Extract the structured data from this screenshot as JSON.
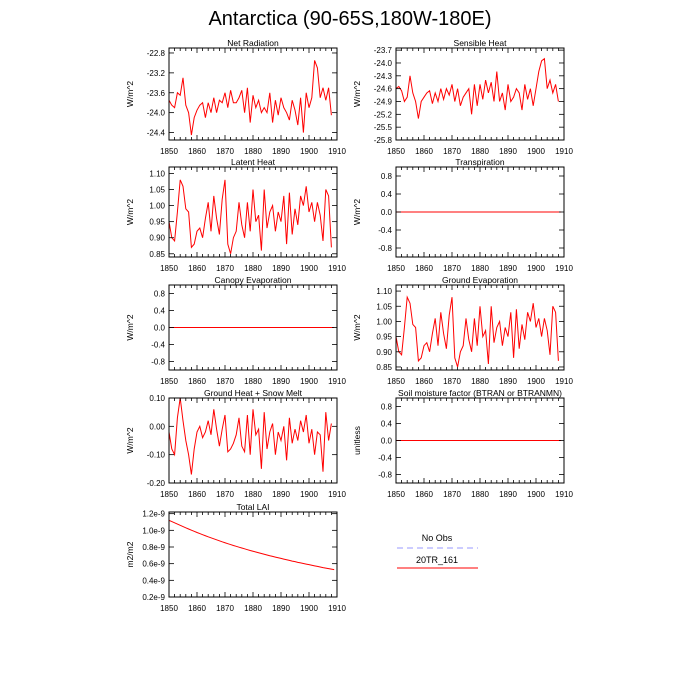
{
  "title": "Antarctica (90-65S,180W-180E)",
  "legend": {
    "entries": [
      {
        "label": "No Obs",
        "color": "#9999ff",
        "dash": true
      },
      {
        "label": "20TR_161",
        "color": "#ff0000",
        "dash": false
      }
    ]
  },
  "chart_data": [
    {
      "type": "line",
      "title": "Net Radiation",
      "ylabel": "W/m^2",
      "xlim": [
        1850,
        1910
      ],
      "ylim": [
        -24.55,
        -22.7
      ],
      "xticks": [
        1850,
        1860,
        1870,
        1880,
        1890,
        1900,
        1910
      ],
      "yticks": [
        -22.8,
        -23.2,
        -23.6,
        -24.0,
        -24.4
      ],
      "ytick_labels": [
        "-22.8",
        "-23.2",
        "-23.6",
        "-24.0",
        "-24.4"
      ],
      "x_start": 1850,
      "values": [
        -23.75,
        -23.85,
        -23.9,
        -23.6,
        -23.65,
        -23.3,
        -23.85,
        -24.0,
        -24.45,
        -24.1,
        -23.95,
        -23.85,
        -23.8,
        -24.1,
        -23.8,
        -24.0,
        -23.7,
        -24.0,
        -23.75,
        -23.8,
        -23.6,
        -23.9,
        -23.55,
        -23.8,
        -23.8,
        -23.7,
        -23.55,
        -24.0,
        -23.5,
        -24.2,
        -23.65,
        -23.9,
        -23.75,
        -24.0,
        -23.9,
        -24.0,
        -23.6,
        -24.2,
        -23.75,
        -24.05,
        -23.7,
        -23.9,
        -24.0,
        -24.15,
        -23.75,
        -23.95,
        -24.25,
        -23.7,
        -24.4,
        -23.6,
        -23.9,
        -23.7,
        -22.95,
        -23.1,
        -23.7,
        -23.5,
        -23.75,
        -23.5,
        -24.05
      ]
    },
    {
      "type": "line",
      "title": "Sensible Heat",
      "ylabel": "W/m^2",
      "xlim": [
        1850,
        1910
      ],
      "ylim": [
        -25.8,
        -23.65
      ],
      "xticks": [
        1850,
        1860,
        1870,
        1880,
        1890,
        1900,
        1910
      ],
      "yticks": [
        -23.7,
        -24.0,
        -24.3,
        -24.6,
        -24.9,
        -25.2,
        -25.5,
        -25.8
      ],
      "ytick_labels": [
        "-23.7",
        "-24.0",
        "-24.3",
        "-24.6",
        "-24.9",
        "-25.2",
        "-25.5",
        "-25.8"
      ],
      "x_start": 1850,
      "values": [
        -24.6,
        -24.55,
        -24.65,
        -24.9,
        -24.8,
        -24.3,
        -24.7,
        -24.9,
        -25.3,
        -24.9,
        -24.8,
        -24.7,
        -24.65,
        -24.95,
        -24.7,
        -24.9,
        -24.6,
        -24.85,
        -24.6,
        -24.75,
        -24.5,
        -24.9,
        -24.6,
        -25.0,
        -24.8,
        -24.7,
        -24.6,
        -25.2,
        -24.5,
        -25.0,
        -24.5,
        -24.85,
        -24.4,
        -24.7,
        -24.45,
        -24.9,
        -24.2,
        -24.9,
        -24.7,
        -25.1,
        -24.5,
        -24.9,
        -24.8,
        -24.6,
        -24.7,
        -25.1,
        -24.5,
        -24.85,
        -24.6,
        -25.0,
        -24.6,
        -24.2,
        -23.95,
        -23.9,
        -24.6,
        -24.4,
        -24.7,
        -24.5,
        -24.9
      ]
    },
    {
      "type": "line",
      "title": "Latent Heat",
      "ylabel": "W/m^2",
      "xlim": [
        1850,
        1910
      ],
      "ylim": [
        0.84,
        1.12
      ],
      "xticks": [
        1850,
        1860,
        1870,
        1880,
        1890,
        1900,
        1910
      ],
      "yticks": [
        0.85,
        0.9,
        0.95,
        1.0,
        1.05,
        1.1
      ],
      "ytick_labels": [
        "0.85",
        "0.90",
        "0.95",
        "1.00",
        "1.05",
        "1.10"
      ],
      "x_start": 1850,
      "values": [
        0.95,
        0.9,
        0.89,
        0.98,
        1.08,
        1.06,
        0.99,
        0.98,
        0.87,
        0.88,
        0.92,
        0.93,
        0.9,
        0.96,
        1.01,
        0.92,
        1.03,
        0.96,
        0.91,
        1.02,
        1.08,
        0.88,
        0.85,
        0.9,
        0.92,
        1.01,
        0.94,
        0.9,
        1.01,
        0.92,
        1.05,
        0.95,
        0.97,
        0.86,
        1.05,
        0.93,
        0.98,
        1.0,
        0.92,
        0.98,
        0.95,
        1.03,
        0.88,
        1.04,
        0.91,
        0.99,
        0.94,
        1.03,
        1.0,
        1.06,
        0.98,
        1.01,
        0.95,
        1.01,
        0.97,
        0.89,
        1.05,
        1.03,
        0.87
      ]
    },
    {
      "type": "line",
      "title": "Transpiration",
      "ylabel": "W/m^2",
      "xlim": [
        1850,
        1910
      ],
      "ylim": [
        -1.0,
        1.0
      ],
      "xticks": [
        1850,
        1860,
        1870,
        1880,
        1890,
        1900,
        1910
      ],
      "yticks": [
        0.8,
        0.4,
        0.0,
        -0.4,
        -0.8
      ],
      "ytick_labels": [
        "0.8",
        "0.4",
        "0.0",
        "-0.4",
        "-0.8"
      ],
      "x": [
        1850,
        1909
      ],
      "values": [
        0,
        0
      ]
    },
    {
      "type": "line",
      "title": "Canopy Evaporation",
      "ylabel": "W/m^2",
      "xlim": [
        1850,
        1910
      ],
      "ylim": [
        -1.0,
        1.0
      ],
      "xticks": [
        1850,
        1860,
        1870,
        1880,
        1890,
        1900,
        1910
      ],
      "yticks": [
        0.8,
        0.4,
        0.0,
        -0.4,
        -0.8
      ],
      "ytick_labels": [
        "0.8",
        "0.4",
        "0.0",
        "-0.4",
        "-0.8"
      ],
      "x": [
        1850,
        1909
      ],
      "values": [
        0,
        0
      ]
    },
    {
      "type": "line",
      "title": "Ground Evaporation",
      "ylabel": "W/m^2",
      "xlim": [
        1850,
        1910
      ],
      "ylim": [
        0.84,
        1.12
      ],
      "xticks": [
        1850,
        1860,
        1870,
        1880,
        1890,
        1900,
        1910
      ],
      "yticks": [
        0.85,
        0.9,
        0.95,
        1.0,
        1.05,
        1.1
      ],
      "ytick_labels": [
        "0.85",
        "0.90",
        "0.95",
        "1.00",
        "1.05",
        "1.10"
      ],
      "x_start": 1850,
      "values": [
        0.95,
        0.9,
        0.89,
        0.98,
        1.08,
        1.06,
        0.99,
        0.98,
        0.87,
        0.88,
        0.92,
        0.93,
        0.9,
        0.96,
        1.01,
        0.92,
        1.03,
        0.96,
        0.91,
        1.02,
        1.08,
        0.88,
        0.85,
        0.9,
        0.92,
        1.01,
        0.94,
        0.9,
        1.01,
        0.92,
        1.05,
        0.95,
        0.97,
        0.86,
        1.05,
        0.93,
        0.98,
        1.0,
        0.92,
        0.98,
        0.95,
        1.03,
        0.88,
        1.04,
        0.91,
        0.99,
        0.94,
        1.03,
        1.0,
        1.06,
        0.98,
        1.01,
        0.95,
        1.01,
        0.97,
        0.89,
        1.05,
        1.03,
        0.87
      ]
    },
    {
      "type": "line",
      "title": "Ground Heat + Snow Melt",
      "ylabel": "W/m^2",
      "xlim": [
        1850,
        1910
      ],
      "ylim": [
        -0.2,
        0.1
      ],
      "xticks": [
        1850,
        1860,
        1870,
        1880,
        1890,
        1900,
        1910
      ],
      "yticks": [
        0.1,
        0.0,
        -0.1,
        -0.2
      ],
      "ytick_labels": [
        "0.10",
        "0.00",
        "-0.10",
        "-0.20"
      ],
      "x_start": 1850,
      "values": [
        -0.02,
        -0.08,
        -0.1,
        0.03,
        0.1,
        0.02,
        -0.05,
        -0.1,
        -0.17,
        -0.08,
        -0.02,
        0.0,
        -0.04,
        -0.02,
        0.02,
        -0.03,
        0.06,
        -0.01,
        -0.07,
        -0.01,
        0.04,
        -0.09,
        -0.08,
        -0.06,
        -0.03,
        0.03,
        -0.07,
        -0.09,
        0.04,
        -0.1,
        0.06,
        -0.03,
        -0.01,
        -0.15,
        0.05,
        -0.08,
        -0.02,
        0.01,
        -0.1,
        -0.02,
        -0.05,
        0.0,
        -0.12,
        0.03,
        -0.06,
        -0.01,
        -0.05,
        0.02,
        -0.02,
        0.04,
        -0.06,
        -0.01,
        -0.1,
        -0.02,
        -0.03,
        -0.16,
        0.05,
        -0.05,
        0.01
      ]
    },
    {
      "type": "line",
      "title": "Soil moisture factor (BTRAN or BTRANMN)",
      "ylabel": "unitless",
      "xlim": [
        1850,
        1910
      ],
      "ylim": [
        -1.0,
        1.0
      ],
      "xticks": [
        1850,
        1860,
        1870,
        1880,
        1890,
        1900,
        1910
      ],
      "yticks": [
        0.8,
        0.4,
        0.0,
        -0.4,
        -0.8
      ],
      "ytick_labels": [
        "0.8",
        "0.4",
        "0.0",
        "-0.4",
        "-0.8"
      ],
      "x": [
        1850,
        1909
      ],
      "values": [
        0,
        0
      ]
    },
    {
      "type": "line",
      "title": "Total LAI",
      "ylabel": "m2/m2",
      "xlim": [
        1850,
        1910
      ],
      "ylim": [
        2e-10,
        1.22e-09
      ],
      "xticks": [
        1850,
        1860,
        1870,
        1880,
        1890,
        1900,
        1910
      ],
      "yticks": [
        1.2e-09,
        1e-09,
        8e-10,
        6e-10,
        4e-10,
        2e-10
      ],
      "ytick_labels": [
        "1.2e-9",
        "1.0e-9",
        "0.8e-9",
        "0.6e-9",
        "0.4e-9",
        "0.2e-9"
      ],
      "x_start": 1850,
      "values": [
        1.12e-09,
        1.105e-09,
        1.09e-09,
        1.075e-09,
        1.06e-09,
        1.045e-09,
        1.03e-09,
        1.016e-09,
        1.002e-09,
        9.88e-10,
        9.74e-10,
        9.61e-10,
        9.48e-10,
        9.35e-10,
        9.22e-10,
        9.1e-10,
        8.98e-10,
        8.86e-10,
        8.74e-10,
        8.62e-10,
        8.51e-10,
        8.4e-10,
        8.29e-10,
        8.18e-10,
        8.08e-10,
        7.98e-10,
        7.88e-10,
        7.78e-10,
        7.68e-10,
        7.58e-10,
        7.49e-10,
        7.4e-10,
        7.31e-10,
        7.22e-10,
        7.13e-10,
        7.04e-10,
        6.95e-10,
        6.87e-10,
        6.79e-10,
        6.71e-10,
        6.63e-10,
        6.55e-10,
        6.47e-10,
        6.39e-10,
        6.31e-10,
        6.24e-10,
        6.16e-10,
        6.09e-10,
        6.02e-10,
        5.95e-10,
        5.88e-10,
        5.81e-10,
        5.74e-10,
        5.67e-10,
        5.6e-10,
        5.53e-10,
        5.47e-10,
        5.41e-10,
        5.35e-10,
        5.29e-10
      ]
    }
  ]
}
